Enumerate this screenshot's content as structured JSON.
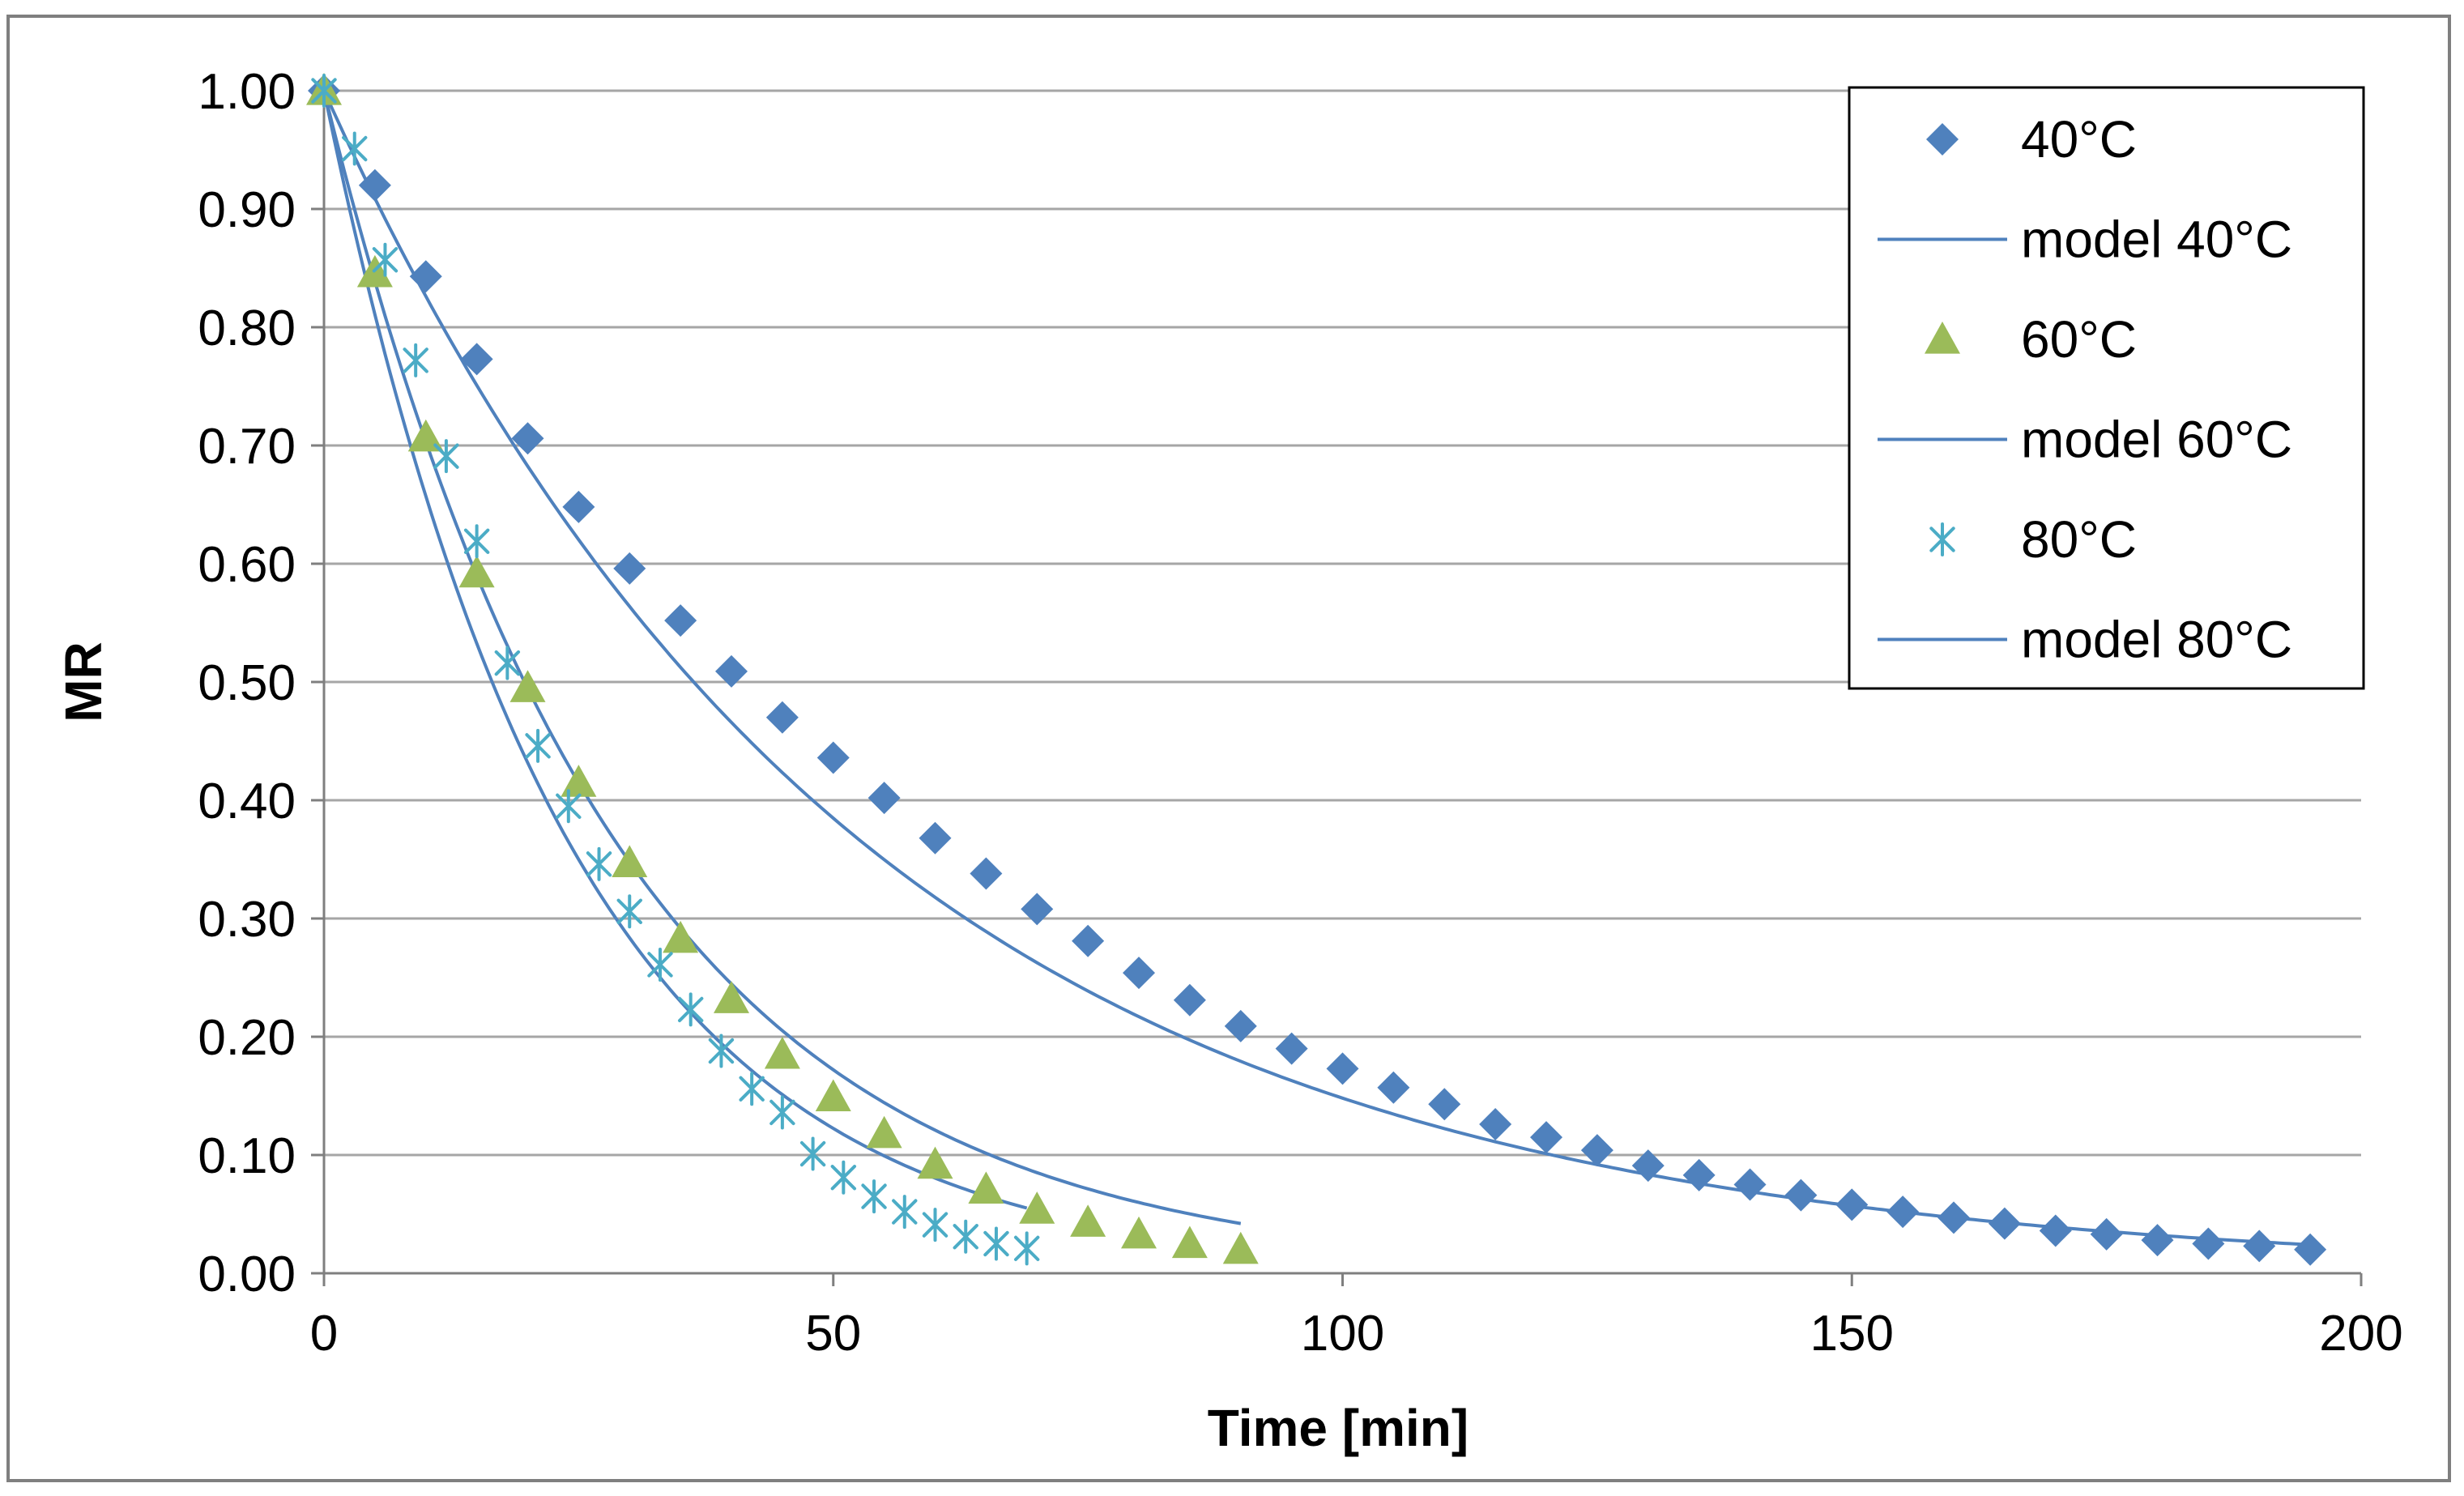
{
  "chart_data": {
    "type": "scatter",
    "title": "",
    "xlabel": "Time [min]",
    "ylabel": "MR",
    "xlim": [
      0,
      200
    ],
    "ylim": [
      0,
      1
    ],
    "x_ticks": [
      0,
      50,
      100,
      150,
      200
    ],
    "y_ticks": [
      0,
      0.1,
      0.2,
      0.3,
      0.4,
      0.5,
      0.6,
      0.7,
      0.8,
      0.9,
      1.0
    ],
    "x_tick_labels": [
      "0",
      "50",
      "100",
      "150",
      "200"
    ],
    "y_tick_labels": [
      "0.00",
      "0.10",
      "0.20",
      "0.30",
      "0.40",
      "0.50",
      "0.60",
      "0.70",
      "0.80",
      "0.90",
      "1.00"
    ],
    "grid": "horizontal",
    "legend_position": "top-right",
    "series": [
      {
        "name": "40°C",
        "marker": "diamond",
        "color": "#4F81BD",
        "x": [
          0,
          5,
          10,
          15,
          20,
          25,
          30,
          35,
          40,
          45,
          50,
          55,
          60,
          65,
          70,
          75,
          80,
          85,
          90,
          95,
          100,
          105,
          110,
          115,
          120,
          125,
          130,
          135,
          140,
          145,
          150,
          155,
          160,
          165,
          170,
          175,
          180,
          185,
          190,
          195
        ],
        "y": [
          1.0,
          0.92,
          0.843,
          0.773,
          0.706,
          0.648,
          0.596,
          0.552,
          0.509,
          0.47,
          0.436,
          0.402,
          0.368,
          0.338,
          0.308,
          0.281,
          0.254,
          0.231,
          0.209,
          0.19,
          0.173,
          0.157,
          0.143,
          0.126,
          0.115,
          0.104,
          0.091,
          0.083,
          0.075,
          0.066,
          0.058,
          0.052,
          0.047,
          0.042,
          0.036,
          0.033,
          0.028,
          0.025,
          0.023,
          0.02
        ]
      },
      {
        "name": "model 40°C",
        "line": true,
        "color": "#4F81BD",
        "k": 0.0191,
        "x_max": 195
      },
      {
        "name": "60°C",
        "marker": "triangle",
        "color": "#9BBB59",
        "x": [
          0,
          5,
          10,
          15,
          20,
          25,
          30,
          35,
          40,
          45,
          50,
          55,
          60,
          65,
          70,
          75,
          80,
          85,
          90
        ],
        "y": [
          1.0,
          0.846,
          0.707,
          0.592,
          0.495,
          0.415,
          0.347,
          0.283,
          0.232,
          0.185,
          0.149,
          0.118,
          0.092,
          0.071,
          0.054,
          0.043,
          0.033,
          0.025,
          0.02
        ]
      },
      {
        "name": "model 60°C",
        "line": true,
        "color": "#4F81BD",
        "k": 0.0352,
        "x_max": 90
      },
      {
        "name": "80°C",
        "marker": "star",
        "color": "#4BACC6",
        "x": [
          0,
          3,
          6,
          9,
          12,
          15,
          18,
          21,
          24,
          27,
          30,
          33,
          36,
          39,
          42,
          45,
          48,
          51,
          54,
          57,
          60,
          63,
          66,
          69
        ],
        "y": [
          1.0,
          0.951,
          0.857,
          0.772,
          0.691,
          0.619,
          0.516,
          0.446,
          0.395,
          0.346,
          0.306,
          0.261,
          0.223,
          0.188,
          0.156,
          0.136,
          0.101,
          0.081,
          0.065,
          0.052,
          0.041,
          0.031,
          0.025,
          0.021
        ]
      },
      {
        "name": "model 80°C",
        "line": true,
        "color": "#4F81BD",
        "k": 0.042,
        "x_max": 69
      }
    ]
  }
}
